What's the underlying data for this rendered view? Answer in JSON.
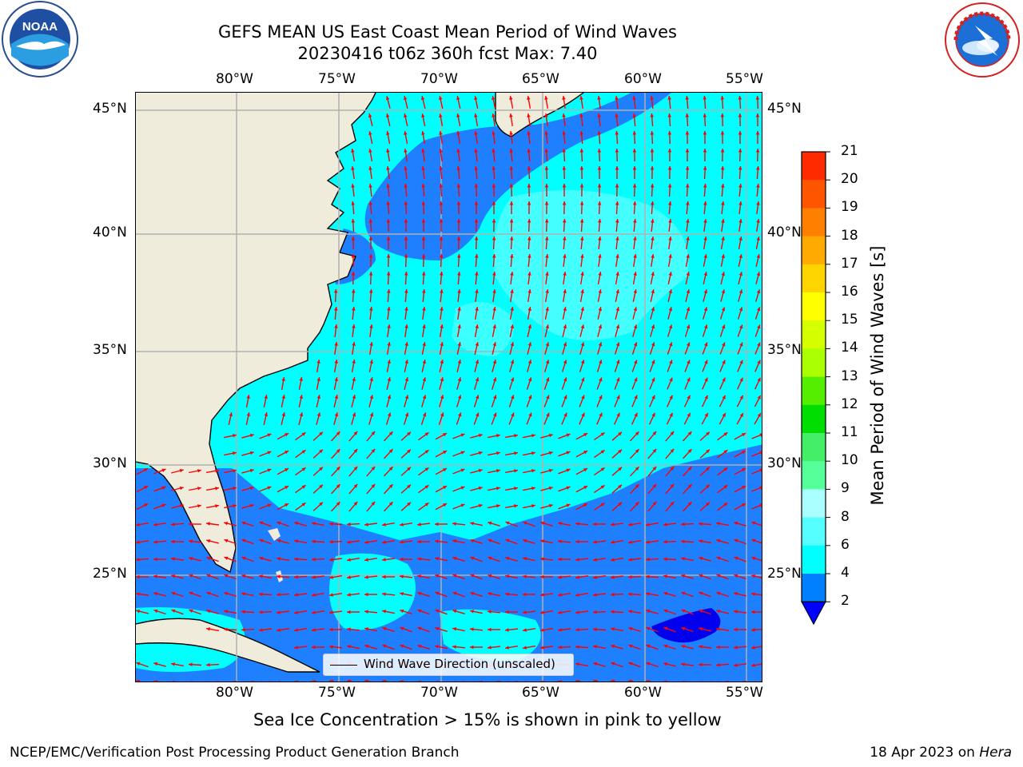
{
  "title": {
    "line1": "GEFS MEAN US East Coast Mean Period of Wind Waves",
    "line2": "20230416 t06z 360h fcst   Max: 7.40"
  },
  "logos": {
    "left": {
      "name": "noaa-logo",
      "text": "NOAA"
    },
    "right": {
      "name": "nws-logo",
      "ring_text": "NATIONAL WEATHER SERVICE"
    }
  },
  "axes": {
    "lon_ticks": [
      "80°W",
      "75°W",
      "70°W",
      "65°W",
      "60°W",
      "55°W"
    ],
    "lat_ticks": [
      "45°N",
      "40°N",
      "35°N",
      "30°N",
      "25°N"
    ]
  },
  "legend": {
    "label": "Wind Wave Direction (unscaled)"
  },
  "colorbar": {
    "title": "Mean Period of Wind Waves [s]",
    "levels": [
      "21",
      "20",
      "19",
      "18",
      "17",
      "16",
      "15",
      "14",
      "13",
      "12",
      "11",
      "10",
      "9",
      "8",
      "6",
      "4",
      "2"
    ],
    "colors": [
      "#ff0000",
      "#ff2a00",
      "#ff5500",
      "#ff8000",
      "#ffaa00",
      "#ffd500",
      "#ffff00",
      "#d4ff00",
      "#aaff00",
      "#55ee00",
      "#00dd00",
      "#44ee66",
      "#55ff99",
      "#aaffff",
      "#55ffff",
      "#00ffff",
      "#0080ff",
      "#0000ff"
    ]
  },
  "map_colors": {
    "land": "#efecdc",
    "ocean_4_6": "#00ffff",
    "ocean_2_4": "#1e80ff",
    "ocean_6_8": "#55ffff",
    "ocean_lt_2": "#0000ee",
    "arrows": "#ff0000",
    "grid": "#b0b0b0"
  },
  "footer": {
    "note": "Sea Ice Concentration > 15% is shown in pink to yellow",
    "left": "NCEP/EMC/Verification Post Processing Product Generation Branch",
    "right_prefix": "18 Apr 2023 on ",
    "right_host": "Hera"
  }
}
